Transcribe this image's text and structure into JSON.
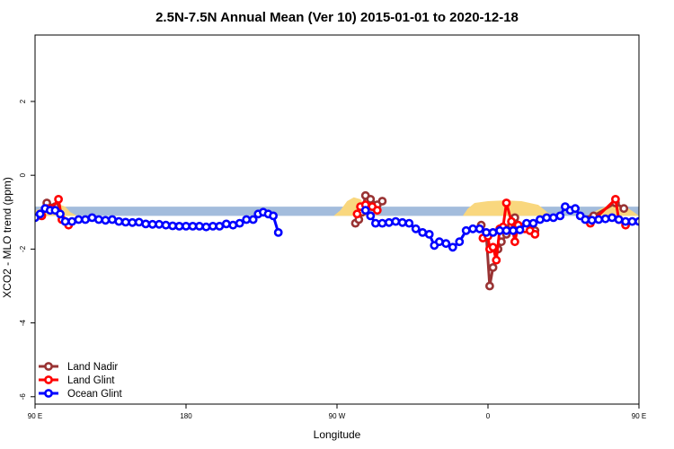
{
  "chart_data": {
    "type": "line",
    "title": "2.5N-7.5N Annual Mean (Ver 10)   2015-01-01 to 2020-12-18",
    "xlabel": "Longitude",
    "ylabel": "XCO2 - MLO trend (ppm)",
    "xlim": [
      90,
      450
    ],
    "ylim": [
      -6.2,
      3.8
    ],
    "x_ticks": [
      {
        "value": 90,
        "label": "90 E"
      },
      {
        "value": 180,
        "label": "180"
      },
      {
        "value": 270,
        "label": "90 W"
      },
      {
        "value": 360,
        "label": "0"
      },
      {
        "value": 450,
        "label": "90 E"
      },
      {
        "value": 540,
        "label": "180"
      }
    ],
    "y_ticks": [
      {
        "value": 2,
        "label": "2"
      },
      {
        "value": 0,
        "label": "0"
      },
      {
        "value": -2,
        "label": "-2"
      },
      {
        "value": -4,
        "label": "-4"
      },
      {
        "value": -6,
        "label": "-6"
      }
    ],
    "legend_position": "bottom-left",
    "colors": {
      "land_fraction": "#f9d77e",
      "ocean_fraction": "#a3bcdc",
      "land_nadir": "#993333",
      "land_glint": "#ff0000",
      "ocean_glint": "#0000ff"
    },
    "surface_band": {
      "baseline": -1.1,
      "ocean_top": -0.85,
      "land_top": [
        [
          90,
          -0.95
        ],
        [
          97,
          -0.85
        ],
        [
          100,
          -0.8
        ],
        [
          104,
          -0.78
        ],
        [
          108,
          -0.85
        ],
        [
          111,
          -1.0
        ],
        [
          115,
          -1.1
        ],
        [
          268,
          -1.1
        ],
        [
          272,
          -0.95
        ],
        [
          276,
          -0.7
        ],
        [
          280,
          -0.6
        ],
        [
          284,
          -0.65
        ],
        [
          288,
          -0.9
        ],
        [
          291,
          -1.05
        ],
        [
          295,
          -1.1
        ],
        [
          345,
          -1.1
        ],
        [
          348,
          -0.9
        ],
        [
          352,
          -0.75
        ],
        [
          360,
          -0.7
        ],
        [
          370,
          -0.68
        ],
        [
          380,
          -0.7
        ],
        [
          390,
          -0.8
        ],
        [
          394,
          -0.95
        ],
        [
          398,
          -1.1
        ],
        [
          420,
          -1.1
        ],
        [
          425,
          -0.95
        ],
        [
          430,
          -0.85
        ],
        [
          437,
          -0.8
        ],
        [
          442,
          -0.85
        ],
        [
          447,
          -1.0
        ],
        [
          450,
          -1.1
        ]
      ]
    },
    "series": [
      {
        "name": "Land Nadir",
        "key": "land_nadir",
        "segments": [
          [
            [
              97,
              -0.75
            ],
            [
              102,
              -0.85
            ]
          ],
          [
            [
              281,
              -1.3
            ],
            [
              283,
              -1.2
            ],
            [
              285,
              -1.0
            ],
            [
              287,
              -0.55
            ],
            [
              290,
              -0.65
            ],
            [
              294,
              -0.8
            ],
            [
              297,
              -0.7
            ]
          ],
          [
            [
              356,
              -1.35
            ],
            [
              359,
              -1.6
            ],
            [
              361,
              -3.0
            ],
            [
              363,
              -2.5
            ],
            [
              366,
              -2.0
            ],
            [
              368,
              -1.8
            ],
            [
              371,
              -1.6
            ],
            [
              374,
              -1.35
            ],
            [
              376,
              -1.15
            ],
            [
              380,
              -1.4
            ],
            [
              384,
              -1.4
            ],
            [
              388,
              -1.5
            ]
          ],
          [
            [
              420,
              -1.2
            ],
            [
              423,
              -1.1
            ],
            [
              436,
              -0.75
            ],
            [
              441,
              -0.9
            ]
          ]
        ]
      },
      {
        "name": "Land Glint",
        "key": "land_glint",
        "segments": [
          [
            [
              94,
              -1.1
            ],
            [
              97,
              -0.9
            ],
            [
              100,
              -0.9
            ],
            [
              104,
              -0.65
            ],
            [
              106,
              -1.2
            ],
            [
              110,
              -1.35
            ]
          ],
          [
            [
              282,
              -1.05
            ],
            [
              284,
              -0.85
            ],
            [
              287,
              -0.8
            ],
            [
              291,
              -0.85
            ],
            [
              294,
              -0.95
            ]
          ],
          [
            [
              357,
              -1.7
            ],
            [
              360,
              -1.65
            ],
            [
              361,
              -2.0
            ],
            [
              363,
              -1.95
            ],
            [
              365,
              -2.3
            ],
            [
              367,
              -1.45
            ],
            [
              369,
              -1.4
            ],
            [
              371,
              -0.75
            ],
            [
              374,
              -1.25
            ],
            [
              376,
              -1.8
            ],
            [
              378,
              -1.35
            ],
            [
              382,
              -1.45
            ],
            [
              385,
              -1.5
            ],
            [
              388,
              -1.6
            ]
          ],
          [
            [
              421,
              -1.3
            ],
            [
              436,
              -0.65
            ],
            [
              438,
              -1.2
            ],
            [
              442,
              -1.35
            ]
          ]
        ]
      },
      {
        "name": "Ocean Glint",
        "key": "ocean_glint",
        "segments": [
          [
            [
              90,
              -1.15
            ],
            [
              93,
              -1.05
            ],
            [
              96,
              -0.9
            ],
            [
              99,
              -0.95
            ],
            [
              102,
              -0.95
            ],
            [
              105,
              -1.05
            ],
            [
              108,
              -1.25
            ],
            [
              112,
              -1.25
            ],
            [
              116,
              -1.2
            ],
            [
              120,
              -1.2
            ],
            [
              124,
              -1.15
            ],
            [
              128,
              -1.2
            ],
            [
              132,
              -1.22
            ],
            [
              136,
              -1.2
            ],
            [
              140,
              -1.25
            ],
            [
              144,
              -1.27
            ],
            [
              148,
              -1.28
            ],
            [
              152,
              -1.27
            ],
            [
              156,
              -1.32
            ],
            [
              160,
              -1.33
            ],
            [
              164,
              -1.33
            ],
            [
              168,
              -1.35
            ],
            [
              172,
              -1.37
            ],
            [
              176,
              -1.38
            ],
            [
              180,
              -1.38
            ],
            [
              184,
              -1.38
            ],
            [
              188,
              -1.38
            ],
            [
              192,
              -1.4
            ],
            [
              196,
              -1.38
            ],
            [
              200,
              -1.38
            ],
            [
              204,
              -1.32
            ],
            [
              208,
              -1.35
            ],
            [
              212,
              -1.3
            ],
            [
              216,
              -1.2
            ],
            [
              220,
              -1.2
            ],
            [
              223,
              -1.05
            ],
            [
              226,
              -1.0
            ],
            [
              229,
              -1.05
            ],
            [
              232,
              -1.1
            ],
            [
              235,
              -1.55
            ]
          ],
          [
            [
              287,
              -0.95
            ],
            [
              290,
              -1.1
            ],
            [
              293,
              -1.3
            ],
            [
              297,
              -1.3
            ],
            [
              301,
              -1.28
            ],
            [
              305,
              -1.25
            ],
            [
              309,
              -1.28
            ],
            [
              313,
              -1.3
            ],
            [
              317,
              -1.45
            ],
            [
              321,
              -1.55
            ],
            [
              325,
              -1.6
            ],
            [
              328,
              -1.9
            ],
            [
              331,
              -1.8
            ],
            [
              335,
              -1.85
            ],
            [
              339,
              -1.95
            ],
            [
              343,
              -1.8
            ],
            [
              347,
              -1.5
            ],
            [
              351,
              -1.45
            ],
            [
              355,
              -1.45
            ],
            [
              359,
              -1.55
            ],
            [
              363,
              -1.55
            ],
            [
              367,
              -1.5
            ],
            [
              371,
              -1.5
            ],
            [
              375,
              -1.5
            ],
            [
              379,
              -1.48
            ],
            [
              383,
              -1.3
            ],
            [
              387,
              -1.3
            ],
            [
              391,
              -1.2
            ],
            [
              395,
              -1.15
            ],
            [
              399,
              -1.15
            ],
            [
              403,
              -1.1
            ],
            [
              406,
              -0.85
            ],
            [
              409,
              -0.95
            ],
            [
              412,
              -0.9
            ],
            [
              415,
              -1.1
            ],
            [
              418,
              -1.2
            ],
            [
              422,
              -1.22
            ],
            [
              426,
              -1.2
            ],
            [
              430,
              -1.18
            ],
            [
              434,
              -1.15
            ],
            [
              438,
              -1.2
            ],
            [
              442,
              -1.25
            ],
            [
              446,
              -1.25
            ],
            [
              450,
              -1.25
            ]
          ]
        ]
      }
    ]
  }
}
